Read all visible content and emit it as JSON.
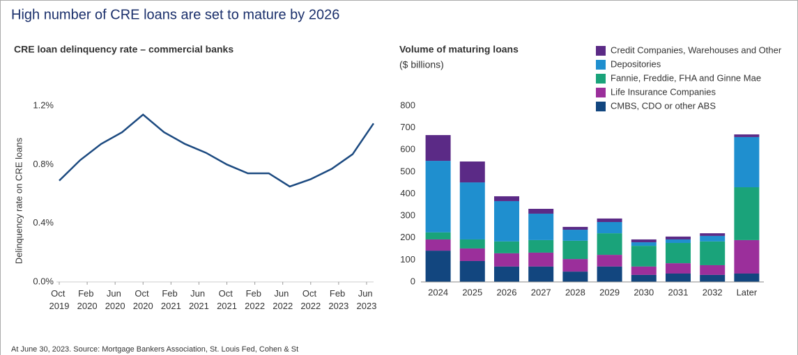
{
  "title": "High number of CRE loans are set to mature by 2026",
  "note": "At June 30, 2023. Source: Mortgage Bankers Association, St. Louis Fed, Cohen & St",
  "chart_data": [
    {
      "type": "line",
      "title": "CRE loan delinquency rate – commercial banks",
      "y_label": "Delinquency rate on CRE loans",
      "x": [
        0,
        3,
        6,
        9,
        12,
        15,
        18,
        21,
        24,
        27,
        30,
        33,
        36,
        39,
        42,
        45
      ],
      "series": [
        {
          "name": "CRE loan delinquency rate",
          "color": "#1c4a80",
          "values": [
            0.69,
            0.83,
            0.94,
            1.02,
            1.14,
            1.02,
            0.94,
            0.88,
            0.8,
            0.74,
            0.74,
            0.65,
            0.7,
            0.77,
            0.87,
            1.08
          ]
        }
      ],
      "xlim": [
        0,
        45
      ],
      "xticks": [
        {
          "value": 0,
          "label": "Oct 2019"
        },
        {
          "value": 4,
          "label": "Feb 2020"
        },
        {
          "value": 8,
          "label": "Jun 2020"
        },
        {
          "value": 12,
          "label": "Oct 2020"
        },
        {
          "value": 16,
          "label": "Feb 2021"
        },
        {
          "value": 20,
          "label": "Jun 2021"
        },
        {
          "value": 24,
          "label": "Oct 2021"
        },
        {
          "value": 28,
          "label": "Feb 2022"
        },
        {
          "value": 32,
          "label": "Jun 2022"
        },
        {
          "value": 36,
          "label": "Oct 2022"
        },
        {
          "value": 40,
          "label": "Feb 2023"
        },
        {
          "value": 44,
          "label": "Jun 2023"
        }
      ],
      "ylim": [
        0,
        1.2
      ],
      "yticks": [
        {
          "value": 0,
          "label": "0.0%"
        },
        {
          "value": 0.4,
          "label": "0.4%"
        },
        {
          "value": 0.8,
          "label": "0.8%"
        },
        {
          "value": 1.2,
          "label": "1.2%"
        }
      ]
    },
    {
      "type": "stacked_bar",
      "title": "Volume of maturing loans",
      "subtitle": "($ billions)",
      "categories": [
        "2024",
        "2025",
        "2026",
        "2027",
        "2028",
        "2029",
        "2030",
        "2031",
        "2032",
        "Later"
      ],
      "series": [
        {
          "name": "CMBS, CDO or other ABS",
          "color": "#12467f",
          "values": [
            142,
            95,
            70,
            70,
            47,
            70,
            32,
            38,
            32,
            38
          ]
        },
        {
          "name": "Life Insurance Companies",
          "color": "#9b2f9b",
          "values": [
            51,
            57,
            60,
            63,
            57,
            53,
            38,
            47,
            44,
            152
          ]
        },
        {
          "name": "Fannie, Freddie, FHA and Ginne Mae",
          "color": "#1aa37a",
          "values": [
            32,
            41,
            54,
            57,
            83,
            98,
            94,
            92,
            108,
            240
          ]
        },
        {
          "name": "Depositories",
          "color": "#1f8fcf",
          "values": [
            325,
            259,
            183,
            120,
            50,
            51,
            16,
            16,
            25,
            228
          ]
        },
        {
          "name": "Credit Companies, Warehouses and Other",
          "color": "#5b2a86",
          "values": [
            117,
            95,
            22,
            22,
            13,
            16,
            13,
            13,
            12,
            12
          ]
        }
      ],
      "ylim": [
        0,
        800
      ],
      "yticks": [
        0,
        100,
        200,
        300,
        400,
        500,
        600,
        700,
        800
      ]
    }
  ]
}
